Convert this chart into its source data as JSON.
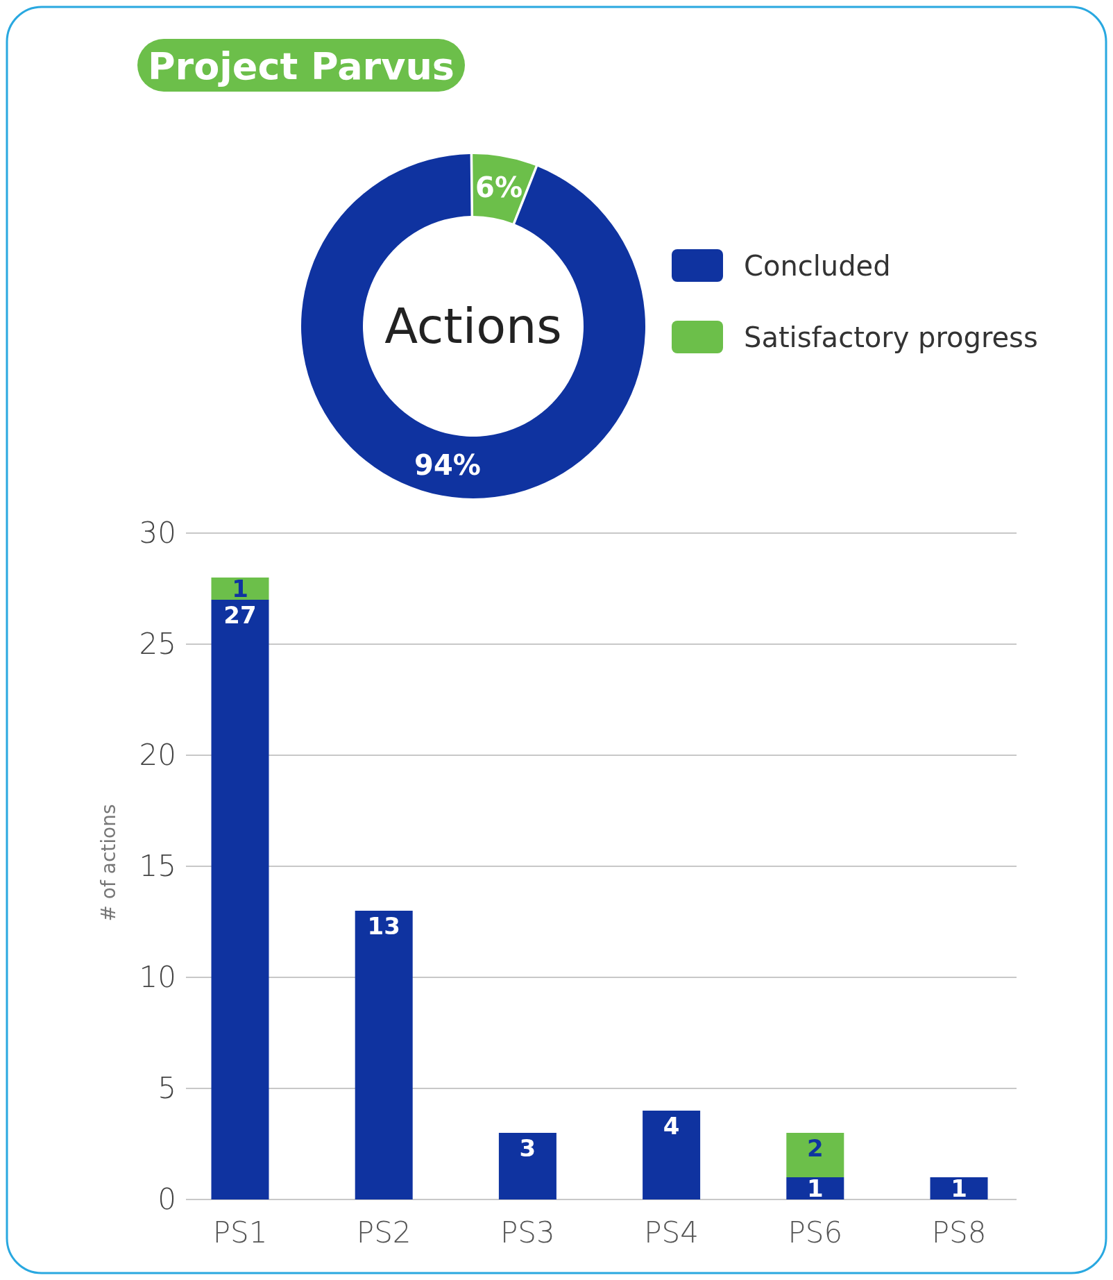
{
  "chart_data": [
    {
      "type": "donut",
      "title": "Project Parvus",
      "annotations": [
        "Actions"
      ],
      "categories": [
        "Concluded",
        "Satisfactory progress"
      ],
      "values": [
        94,
        6
      ],
      "colors": [
        "#0f33a0",
        "#6cbf4a"
      ],
      "value_labels": [
        "94%",
        "6%"
      ],
      "legend": "right"
    },
    {
      "type": "bar",
      "stacked": true,
      "ylabel": "# of actions",
      "categories": [
        "PS1",
        "PS2",
        "PS3",
        "PS4",
        "PS6",
        "PS8"
      ],
      "series": [
        {
          "color": "#0f33a0",
          "values": [
            27,
            13,
            3,
            4,
            1,
            1
          ]
        },
        {
          "color": "#6cbf4a",
          "values": [
            1,
            null,
            null,
            null,
            2,
            null
          ]
        }
      ],
      "ylim": [
        0,
        30
      ],
      "yticks": [
        0,
        5,
        10,
        15,
        20,
        25,
        30
      ],
      "grid": "y",
      "data_labels": true
    }
  ]
}
